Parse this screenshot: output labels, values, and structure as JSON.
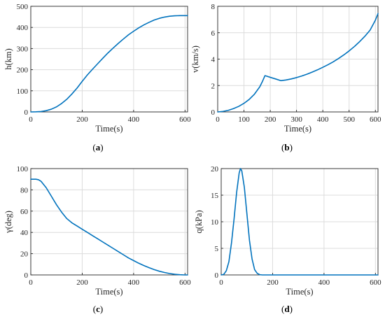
{
  "figure": {
    "series_color": "#0072BD"
  },
  "chart_data": [
    {
      "type": "line",
      "caption_letter": "a",
      "xlabel": "Time(s)",
      "ylabel": "h(km)",
      "xlim": [
        0,
        610
      ],
      "ylim": [
        0,
        500
      ],
      "xticks": [
        0,
        200,
        400,
        600
      ],
      "yticks": [
        0,
        100,
        200,
        300,
        400,
        500
      ],
      "grid": true,
      "series": [
        {
          "x": [
            0,
            20,
            40,
            60,
            80,
            100,
            120,
            140,
            160,
            180,
            200,
            220,
            240,
            260,
            280,
            300,
            320,
            340,
            360,
            380,
            400,
            420,
            440,
            460,
            480,
            500,
            520,
            540,
            560,
            580,
            600,
            610
          ],
          "y": [
            0,
            0.5,
            2,
            6,
            13,
            24,
            40,
            60,
            85,
            113,
            145,
            175,
            202,
            228,
            254,
            279,
            302,
            324,
            345,
            365,
            382,
            398,
            412,
            424,
            435,
            443,
            449,
            453,
            455,
            456,
            456,
            456
          ]
        }
      ]
    },
    {
      "type": "line",
      "caption_letter": "b",
      "xlabel": "Time(s)",
      "ylabel": "v(km/s)",
      "xlim": [
        0,
        610
      ],
      "ylim": [
        0,
        8
      ],
      "xticks": [
        0,
        100,
        200,
        300,
        400,
        500,
        600
      ],
      "yticks": [
        0,
        2,
        4,
        6,
        8
      ],
      "grid": true,
      "series": [
        {
          "x": [
            0,
            20,
            40,
            60,
            80,
            100,
            120,
            140,
            160,
            170,
            180,
            200,
            220,
            240,
            260,
            280,
            300,
            320,
            340,
            360,
            380,
            400,
            420,
            440,
            460,
            480,
            500,
            520,
            540,
            560,
            580,
            600,
            610
          ],
          "y": [
            0,
            0.04,
            0.12,
            0.25,
            0.42,
            0.65,
            0.95,
            1.35,
            1.9,
            2.3,
            2.75,
            2.62,
            2.5,
            2.37,
            2.42,
            2.5,
            2.6,
            2.72,
            2.86,
            3.02,
            3.19,
            3.38,
            3.58,
            3.8,
            4.05,
            4.32,
            4.62,
            4.95,
            5.32,
            5.73,
            6.2,
            6.95,
            7.45
          ]
        }
      ]
    },
    {
      "type": "line",
      "caption_letter": "c",
      "xlabel": "Time(s)",
      "ylabel": "γ(deg)",
      "xlim": [
        0,
        610
      ],
      "ylim": [
        0,
        100
      ],
      "xticks": [
        0,
        200,
        400,
        600
      ],
      "yticks": [
        0,
        20,
        40,
        60,
        80,
        100
      ],
      "grid": true,
      "series": [
        {
          "x": [
            0,
            20,
            30,
            40,
            60,
            80,
            100,
            120,
            140,
            160,
            180,
            200,
            220,
            240,
            260,
            280,
            300,
            320,
            340,
            360,
            380,
            400,
            420,
            440,
            460,
            480,
            500,
            520,
            540,
            560,
            580,
            600,
            610
          ],
          "y": [
            90,
            90,
            89.5,
            88,
            82,
            74,
            66,
            59,
            53,
            49,
            46,
            43,
            40,
            37,
            34,
            31,
            28,
            25,
            22,
            19,
            16,
            13.5,
            11,
            8.8,
            6.8,
            5,
            3.5,
            2.3,
            1.3,
            0.6,
            0.2,
            0,
            0
          ]
        }
      ]
    },
    {
      "type": "line",
      "caption_letter": "d",
      "xlabel": "Time(s)",
      "ylabel": "q(kPa)",
      "xlim": [
        0,
        610
      ],
      "ylim": [
        0,
        20
      ],
      "xticks": [
        0,
        200,
        400,
        600
      ],
      "yticks": [
        0,
        5,
        10,
        15,
        20
      ],
      "grid": true,
      "series": [
        {
          "x": [
            0,
            10,
            20,
            30,
            40,
            50,
            60,
            70,
            75,
            80,
            90,
            100,
            110,
            120,
            130,
            140,
            150,
            160,
            200,
            300,
            400,
            500,
            600,
            610
          ],
          "y": [
            0,
            0.1,
            0.8,
            2.5,
            6,
            10.5,
            15.5,
            19.2,
            20,
            19.6,
            16.5,
            11.5,
            6.5,
            3,
            1,
            0.3,
            0.05,
            0,
            0,
            0,
            0,
            0,
            0,
            0
          ]
        }
      ]
    }
  ]
}
